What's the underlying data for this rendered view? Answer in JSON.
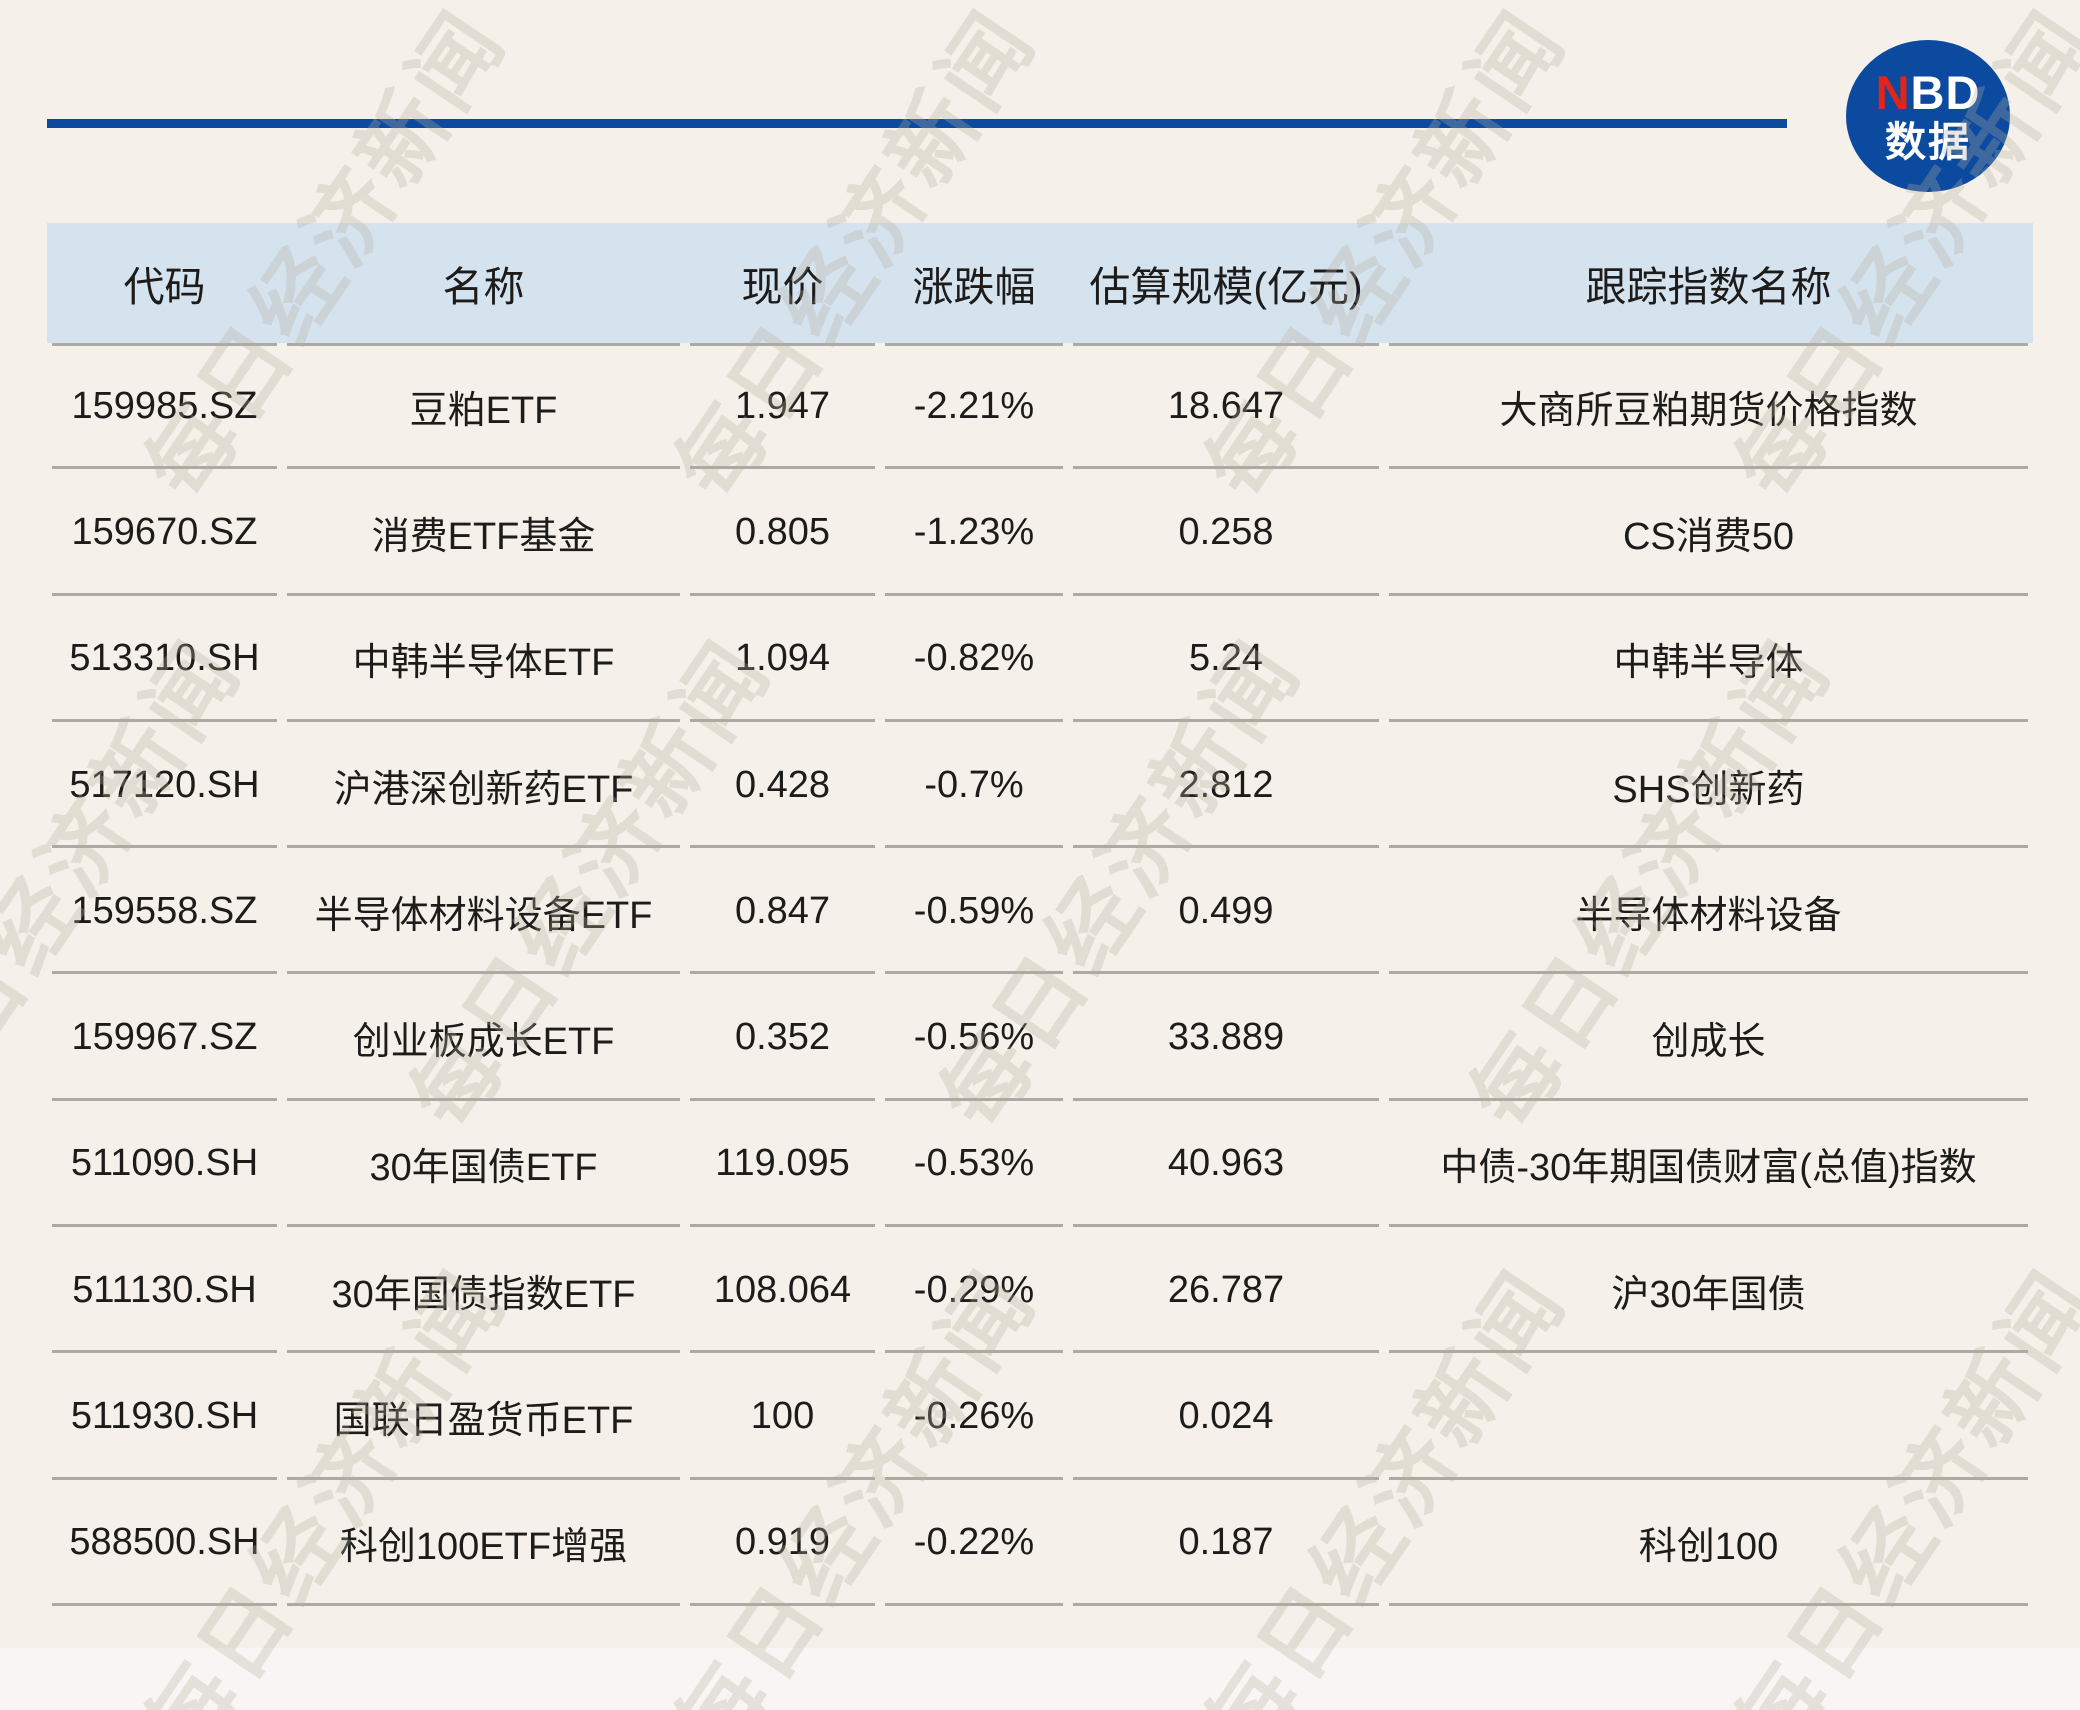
{
  "brand": {
    "logo_line1_red": "N",
    "logo_line1_rest": "BD",
    "logo_line2": "数据"
  },
  "watermark": {
    "text": "每日经济新闻"
  },
  "colors": {
    "background": "#f5f1ea",
    "header_bg": "#d5e3ef",
    "separator": "#aeaaa3",
    "brand_blue": "#0c4a9f",
    "brand_red": "#e1251b",
    "text": "#1d1c1a",
    "footer_strip": "#f8f5f4"
  },
  "chart_data": {
    "type": "table",
    "columns": [
      "代码",
      "名称",
      "现价",
      "涨跌幅",
      "估算规模(亿元)",
      "跟踪指数名称"
    ],
    "rows": [
      [
        "159985.SZ",
        "豆粕ETF",
        "1.947",
        "-2.21%",
        "18.647",
        "大商所豆粕期货价格指数"
      ],
      [
        "159670.SZ",
        "消费ETF基金",
        "0.805",
        "-1.23%",
        "0.258",
        "CS消费50"
      ],
      [
        "513310.SH",
        "中韩半导体ETF",
        "1.094",
        "-0.82%",
        "5.24",
        "中韩半导体"
      ],
      [
        "517120.SH",
        "沪港深创新药ETF",
        "0.428",
        "-0.7%",
        "2.812",
        "SHS创新药"
      ],
      [
        "159558.SZ",
        "半导体材料设备ETF",
        "0.847",
        "-0.59%",
        "0.499",
        "半导体材料设备"
      ],
      [
        "159967.SZ",
        "创业板成长ETF",
        "0.352",
        "-0.56%",
        "33.889",
        "创成长"
      ],
      [
        "511090.SH",
        "30年国债ETF",
        "119.095",
        "-0.53%",
        "40.963",
        "中债-30年期国债财富(总值)指数"
      ],
      [
        "511130.SH",
        "30年国债指数ETF",
        "108.064",
        "-0.29%",
        "26.787",
        "沪30年国债"
      ],
      [
        "511930.SH",
        "国联日盈货币ETF",
        "100",
        "-0.26%",
        "0.024",
        ""
      ],
      [
        "588500.SH",
        "科创100ETF增强",
        "0.919",
        "-0.22%",
        "0.187",
        "科创100"
      ]
    ]
  }
}
